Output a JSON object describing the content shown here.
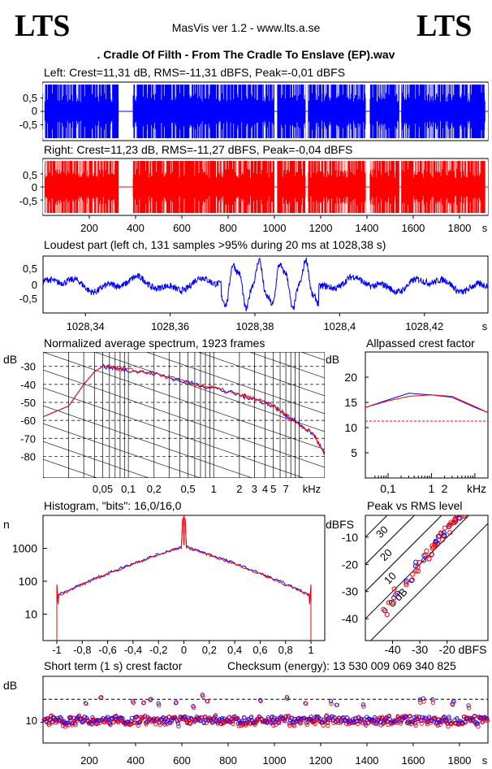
{
  "header": {
    "logo_left": "LTS",
    "logo_right": "LTS",
    "app_title": "MasVis ver 1.2 - www.lts.a.se",
    "file_title": ". Cradle Of Filth - From The Cradle To Enslave (EP).wav"
  },
  "colors": {
    "left": "#0000ff",
    "right": "#ff0000",
    "grid": "#000000"
  },
  "chart_data": [
    {
      "type": "area",
      "title": "Left: Crest=11,31 dB, RMS=-11,31 dBFS, Peak=-0,01 dBFS",
      "ylim": [
        -1,
        1
      ],
      "y_ticks": [
        "0,5",
        "0",
        "-0,5"
      ],
      "duration_s": 1923,
      "quiet_segments_s": [
        [
          0,
          6
        ],
        [
          327,
          388
        ],
        [
          1000,
          1012
        ],
        [
          1135,
          1145
        ],
        [
          1395,
          1412
        ],
        [
          1540,
          1548
        ],
        [
          1912,
          1923
        ]
      ],
      "color": "#0000ff"
    },
    {
      "type": "area",
      "title": "Right: Crest=11,23 dB, RMS=-11,27 dBFS, Peak=-0,04 dBFS",
      "ylim": [
        -1,
        1
      ],
      "y_ticks": [
        "0,5",
        "0",
        "-0,5"
      ],
      "x_ticks": [
        "200",
        "400",
        "600",
        "800",
        "1000",
        "1200",
        "1400",
        "1600",
        "1800",
        "s"
      ],
      "duration_s": 1923,
      "color": "#ff0000"
    },
    {
      "type": "line",
      "title": "Loudest part (left  ch, 131 samples >95% during 20 ms at 1028,38 s)",
      "xlim": [
        1028.33,
        1028.435
      ],
      "ylim": [
        -1,
        1
      ],
      "y_ticks": [
        "0,5",
        "0",
        "-0,5"
      ],
      "x_ticks": [
        "1028,34",
        "1028,36",
        "1028,38",
        "1028,4",
        "1028,42",
        "s"
      ],
      "color": "#0000ff"
    },
    {
      "type": "line",
      "title": "Normalized average spectrum, 1923 frames",
      "ylabel": "dB",
      "y_ticks": [
        "-30",
        "-40",
        "-50",
        "-60",
        "-70",
        "-80"
      ],
      "x_ticks": [
        "0,05",
        "0,1",
        "0,2",
        "0,5",
        "1",
        "2",
        "3",
        "4",
        "5",
        "7",
        "kHz"
      ],
      "x_log": true,
      "series": [
        {
          "x": [
            0.01,
            0.02,
            0.03,
            0.04,
            0.05,
            0.07,
            0.1,
            0.2,
            0.5,
            1,
            2,
            3,
            5,
            7,
            10,
            15,
            20
          ],
          "y": [
            -58,
            -52,
            -40,
            -33,
            -30,
            -31,
            -32,
            -34,
            -39,
            -42,
            -46,
            -48,
            -52,
            -57,
            -62,
            -68,
            -79
          ]
        }
      ]
    },
    {
      "type": "line",
      "title": "Allpassed crest factor",
      "ylabel": "dB",
      "y_ticks": [
        "20",
        "15",
        "10",
        "5"
      ],
      "x_ticks": [
        "0,1",
        "1",
        "2",
        "kHz"
      ],
      "reference_level": 11.3,
      "series": [
        {
          "x": [
            0.03,
            0.1,
            0.3,
            1,
            3,
            10,
            20
          ],
          "y": [
            14,
            15.5,
            16.8,
            16.5,
            16,
            14,
            13
          ]
        },
        {
          "x": [
            0.03,
            0.1,
            0.3,
            1,
            3,
            10,
            20
          ],
          "y": [
            14,
            15.3,
            16.2,
            16.5,
            16.2,
            14.2,
            13
          ]
        }
      ]
    },
    {
      "type": "line",
      "title": "Histogram, \"bits\": 16,0/16,0",
      "ylabel": "n",
      "y_ticks": [
        "1000",
        "100",
        "10"
      ],
      "x_ticks": [
        "-1",
        "-0,8",
        "-0,6",
        "-0,4",
        "-0,2",
        "0",
        "0,2",
        "0,4",
        "0,6",
        "0,8",
        "1"
      ],
      "y_log": true
    },
    {
      "type": "scatter",
      "title": "Peak vs RMS level",
      "ylabel": "dBFS",
      "y_ticks": [
        "-10",
        "-20",
        "-30",
        "-40"
      ],
      "x_ticks": [
        "-40",
        "-30",
        "-20",
        "dBFS"
      ],
      "diagonal_labels": [
        "40",
        "30",
        "20",
        "10",
        "0 dB"
      ],
      "points": [
        [
          -42,
          -37
        ],
        [
          -40,
          -33
        ],
        [
          -38,
          -30
        ],
        [
          -36,
          -27
        ],
        [
          -34,
          -25
        ],
        [
          -32,
          -22
        ],
        [
          -30,
          -20
        ],
        [
          -28,
          -18
        ],
        [
          -27,
          -16
        ],
        [
          -26,
          -15
        ],
        [
          -25,
          -13
        ],
        [
          -24,
          -12
        ],
        [
          -23,
          -11
        ],
        [
          -22,
          -10
        ],
        [
          -21,
          -9
        ],
        [
          -20,
          -8
        ],
        [
          -19,
          -6
        ],
        [
          -18,
          -5
        ],
        [
          -17,
          -4
        ],
        [
          -16,
          -3
        ],
        [
          -15,
          -2
        ],
        [
          -14,
          -1
        ]
      ]
    },
    {
      "type": "scatter",
      "title": "Short term (1 s) crest factor",
      "ylabel": "dB",
      "y_ticks": [
        "10"
      ],
      "x_ticks": [
        "200",
        "400",
        "600",
        "800",
        "1000",
        "1200",
        "1400",
        "1600",
        "1800",
        "s"
      ],
      "reference_level": 11.3
    }
  ],
  "checksum": "Checksum (energy):  13 530 009 069 340 825"
}
